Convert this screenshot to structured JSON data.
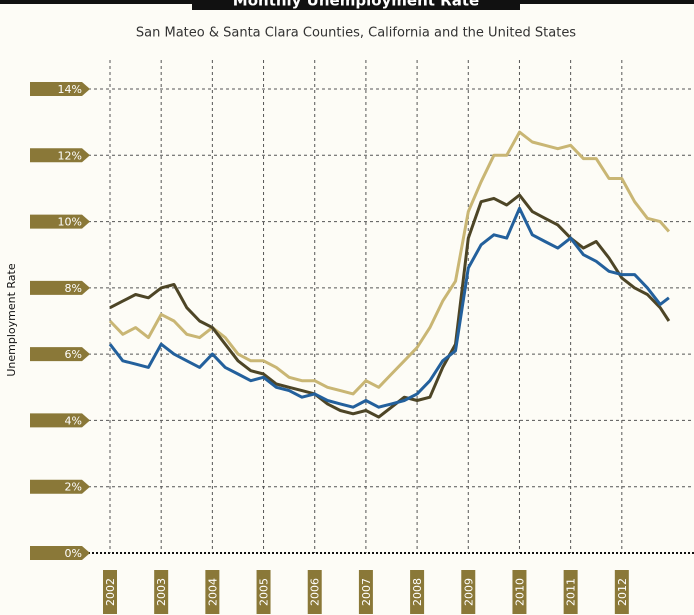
{
  "chart_data": {
    "type": "line",
    "title": "Monthly Unemployment Rate",
    "subtitle": "San Mateo & Santa Clara Counties, California and the United States",
    "y_label": "Unemployment Rate",
    "x": [
      2002,
      2002.25,
      2002.5,
      2002.75,
      2003,
      2003.25,
      2003.5,
      2003.75,
      2004,
      2004.25,
      2004.5,
      2004.75,
      2005,
      2005.25,
      2005.5,
      2005.75,
      2006,
      2006.25,
      2006.5,
      2006.75,
      2007,
      2007.25,
      2007.5,
      2007.75,
      2008,
      2008.25,
      2008.5,
      2008.75,
      2009,
      2009.25,
      2009.5,
      2009.75,
      2010,
      2010.25,
      2010.5,
      2010.75,
      2011,
      2011.25,
      2011.5,
      2011.75,
      2012,
      2012.25,
      2012.5,
      2012.75,
      2012.92
    ],
    "series": [
      {
        "color": "#c9b674",
        "values": [
          7.0,
          6.6,
          6.8,
          6.5,
          7.2,
          7.0,
          6.6,
          6.5,
          6.8,
          6.5,
          6.0,
          5.8,
          5.8,
          5.6,
          5.3,
          5.2,
          5.2,
          5.0,
          4.9,
          4.8,
          5.2,
          5.0,
          5.4,
          5.8,
          6.2,
          6.8,
          7.6,
          8.2,
          10.3,
          11.2,
          12.0,
          12.0,
          12.7,
          12.4,
          12.3,
          12.2,
          12.3,
          11.9,
          11.9,
          11.3,
          11.3,
          10.6,
          10.1,
          10.0,
          9.7
        ]
      },
      {
        "color": "#4d4526",
        "values": [
          7.4,
          7.6,
          7.8,
          7.7,
          8.0,
          8.1,
          7.4,
          7.0,
          6.8,
          6.3,
          5.8,
          5.5,
          5.4,
          5.1,
          5.0,
          4.9,
          4.8,
          4.5,
          4.3,
          4.2,
          4.3,
          4.1,
          4.4,
          4.7,
          4.6,
          4.7,
          5.6,
          6.3,
          9.5,
          10.6,
          10.7,
          10.5,
          10.8,
          10.3,
          10.1,
          9.9,
          9.5,
          9.2,
          9.4,
          8.9,
          8.3,
          8.0,
          7.8,
          7.4,
          7.0
        ]
      },
      {
        "color": "#23609c",
        "values": [
          6.3,
          5.8,
          5.7,
          5.6,
          6.3,
          6.0,
          5.8,
          5.6,
          6.0,
          5.6,
          5.4,
          5.2,
          5.3,
          5.0,
          4.9,
          4.7,
          4.8,
          4.6,
          4.5,
          4.4,
          4.6,
          4.4,
          4.5,
          4.6,
          4.8,
          5.2,
          5.8,
          6.1,
          8.6,
          9.3,
          9.6,
          9.5,
          10.4,
          9.6,
          9.4,
          9.2,
          9.5,
          9.0,
          8.8,
          8.5,
          8.4,
          8.4,
          8.0,
          7.5,
          7.7
        ]
      }
    ],
    "xlim": [
      2002,
      2013
    ],
    "xticks": [
      2002,
      2003,
      2004,
      2005,
      2006,
      2007,
      2008,
      2009,
      2010,
      2011,
      2012
    ],
    "ylim": [
      0,
      14
    ],
    "yticks": [
      {
        "value": 0,
        "label": "0%"
      },
      {
        "value": 2,
        "label": "2%"
      },
      {
        "value": 4,
        "label": "4%"
      },
      {
        "value": 6,
        "label": "6%"
      },
      {
        "value": 8,
        "label": "8%"
      },
      {
        "value": 10,
        "label": "10%"
      },
      {
        "value": 12,
        "label": "12%"
      },
      {
        "value": 14,
        "label": "14%"
      }
    ],
    "grid": true
  }
}
